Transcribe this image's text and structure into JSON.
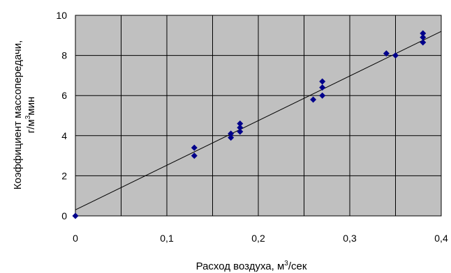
{
  "chart_data": {
    "type": "scatter",
    "title": "",
    "xlabel": "Расход воздуха, м",
    "xlabel_sup": "3",
    "xlabel_suffix": "/сек",
    "ylabel_line1": "Коэффициент массопередачи,",
    "ylabel_line2": "г/м",
    "ylabel_line2_sup": "3",
    "ylabel_line2_suffix": "мин",
    "xlim": [
      0,
      0.4
    ],
    "ylim": [
      0,
      10
    ],
    "x_ticks": [
      {
        "value": 0,
        "label": "0"
      },
      {
        "value": 0.1,
        "label": "0,1"
      },
      {
        "value": 0.2,
        "label": "0,2"
      },
      {
        "value": 0.3,
        "label": "0,3"
      },
      {
        "value": 0.4,
        "label": "0,4"
      }
    ],
    "y_ticks": [
      {
        "value": 0,
        "label": "0"
      },
      {
        "value": 2,
        "label": "2"
      },
      {
        "value": 4,
        "label": "4"
      },
      {
        "value": 6,
        "label": "6"
      },
      {
        "value": 8,
        "label": "8"
      },
      {
        "value": 10,
        "label": "10"
      }
    ],
    "x_gridlines": [
      0,
      0.05,
      0.1,
      0.15,
      0.2,
      0.25,
      0.3,
      0.35,
      0.4
    ],
    "y_gridlines": [
      0,
      2,
      4,
      6,
      8,
      10
    ],
    "grid": true,
    "plot_background": "#c0c0c0",
    "marker_color": "#00008b",
    "marker_shape": "diamond",
    "points": [
      {
        "x": 0,
        "y": 0
      },
      {
        "x": 0.13,
        "y": 3.4
      },
      {
        "x": 0.13,
        "y": 3.0
      },
      {
        "x": 0.17,
        "y": 4.1
      },
      {
        "x": 0.17,
        "y": 3.9
      },
      {
        "x": 0.18,
        "y": 4.6
      },
      {
        "x": 0.18,
        "y": 4.4
      },
      {
        "x": 0.18,
        "y": 4.2
      },
      {
        "x": 0.26,
        "y": 5.8
      },
      {
        "x": 0.27,
        "y": 6.7
      },
      {
        "x": 0.27,
        "y": 6.4
      },
      {
        "x": 0.27,
        "y": 6.0
      },
      {
        "x": 0.34,
        "y": 8.1
      },
      {
        "x": 0.35,
        "y": 8.0
      },
      {
        "x": 0.38,
        "y": 9.1
      },
      {
        "x": 0.38,
        "y": 8.9
      },
      {
        "x": 0.38,
        "y": 8.65
      }
    ],
    "trendline": {
      "type": "linear",
      "color": "#000000",
      "start": {
        "x": 0,
        "y": 0.3
      },
      "end": {
        "x": 0.4,
        "y": 9.2
      }
    }
  }
}
